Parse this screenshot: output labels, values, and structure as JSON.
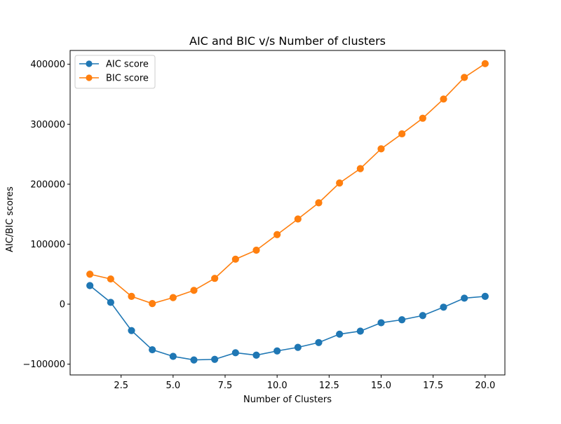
{
  "chart_data": {
    "type": "line",
    "title": "AIC and BIC v/s Number of clusters",
    "xlabel": "Number of Clusters",
    "ylabel": "AIC/BIC scores",
    "xlim": [
      0.05,
      20.95
    ],
    "ylim": [
      -118000,
      423000
    ],
    "xticks": [
      2.5,
      5.0,
      7.5,
      10.0,
      12.5,
      15.0,
      17.5,
      20.0
    ],
    "xtick_labels": [
      "2.5",
      "5.0",
      "7.5",
      "10.0",
      "12.5",
      "15.0",
      "17.5",
      "20.0"
    ],
    "yticks": [
      -100000,
      0,
      100000,
      200000,
      300000,
      400000
    ],
    "ytick_labels": [
      "−100000",
      "0",
      "100000",
      "200000",
      "300000",
      "400000"
    ],
    "grid": false,
    "legend_position": "top-left",
    "x": [
      1,
      2,
      3,
      4,
      5,
      6,
      7,
      8,
      9,
      10,
      11,
      12,
      13,
      14,
      15,
      16,
      17,
      18,
      19,
      20
    ],
    "series": [
      {
        "name": "AIC score",
        "color": "#1f77b4",
        "marker": "circle",
        "values": [
          31000,
          3000,
          -44000,
          -76000,
          -87000,
          -93000,
          -92000,
          -81000,
          -85000,
          -78000,
          -72000,
          -64000,
          -50000,
          -45000,
          -31000,
          -26000,
          -19000,
          -5000,
          10000,
          13000
        ]
      },
      {
        "name": "BIC score",
        "color": "#ff7f0e",
        "marker": "circle",
        "values": [
          50000,
          42000,
          13000,
          1000,
          11000,
          23000,
          43000,
          75000,
          90000,
          116000,
          142000,
          169000,
          202000,
          226000,
          259000,
          284000,
          310000,
          342000,
          378000,
          401000
        ]
      }
    ]
  }
}
